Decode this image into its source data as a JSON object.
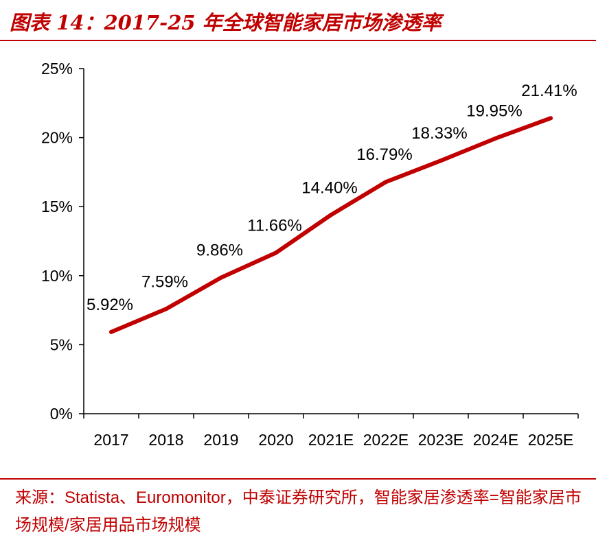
{
  "figure": {
    "title": "图表 14：2017-25 年全球智能家居市场渗透率",
    "source": "来源：Statista、Euromonitor，中泰证券研究所，智能家居渗透率=智能家居市场规模/家居用品市场规模"
  },
  "colors": {
    "accent": "#c00000",
    "line": "#c00000",
    "axis": "#000000"
  },
  "chart_data": {
    "type": "line",
    "title": "2017-25 年全球智能家居市场渗透率",
    "categories": [
      "2017",
      "2018",
      "2019",
      "2020",
      "2021E",
      "2022E",
      "2023E",
      "2024E",
      "2025E"
    ],
    "series": [
      {
        "name": "智能家居渗透率",
        "values": [
          5.92,
          7.59,
          9.86,
          11.66,
          14.4,
          16.79,
          18.33,
          19.95,
          21.41
        ],
        "labels": [
          "5.92%",
          "7.59%",
          "9.86%",
          "11.66%",
          "14.40%",
          "16.79%",
          "18.33%",
          "19.95%",
          "21.41%"
        ]
      }
    ],
    "ylim": [
      0,
      25
    ],
    "yticks": [
      0,
      5,
      10,
      15,
      20,
      25
    ],
    "ytick_labels": [
      "0%",
      "5%",
      "10%",
      "15%",
      "20%",
      "25%"
    ],
    "xlabel": "",
    "ylabel": "",
    "grid": false,
    "legend": "none"
  }
}
